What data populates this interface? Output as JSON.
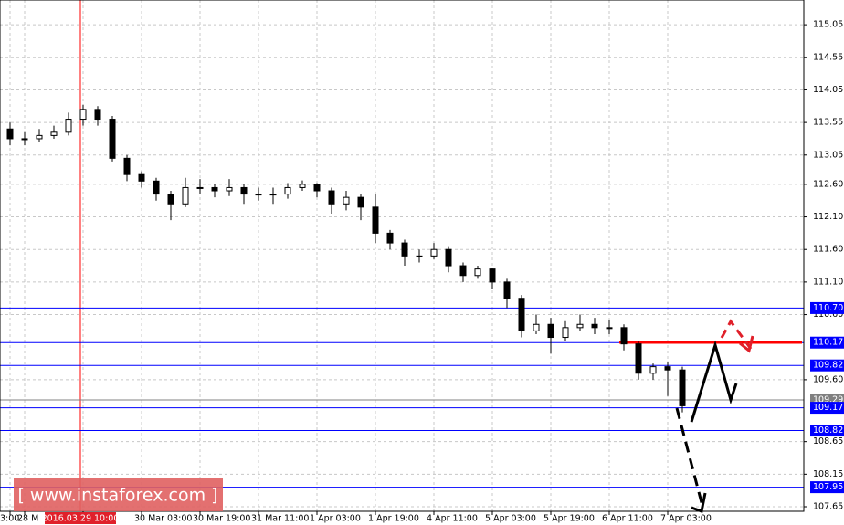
{
  "chart_data": {
    "type": "candlestick",
    "categories": [
      "3:00",
      "28 M",
      null,
      null,
      null,
      "2016.03.29 10:00",
      null,
      null,
      null,
      "30 Mar 03:00",
      null,
      null,
      null,
      "30 Mar 19:00",
      null,
      null,
      null,
      "31 Mar 11:00",
      null,
      null,
      null,
      "1 Apr 03:00",
      null,
      null,
      null,
      "1 Apr 19:00",
      null,
      null,
      null,
      "4 Apr 11:00",
      null,
      null,
      null,
      "5 Apr 03:00",
      null,
      null,
      null,
      "5 Apr 19:00",
      null,
      null,
      null,
      "6 Apr 11:00",
      null,
      null,
      null,
      "7 Apr 03:00",
      null
    ],
    "open": [
      113.45,
      113.3,
      113.3,
      113.35,
      113.4,
      113.6,
      113.75,
      113.6,
      113.0,
      112.75,
      112.65,
      112.45,
      112.3,
      112.55,
      112.55,
      112.5,
      112.55,
      112.45,
      112.45,
      112.45,
      112.55,
      112.6,
      112.5,
      112.3,
      112.4,
      112.25,
      111.85,
      111.7,
      111.5,
      111.5,
      111.6,
      111.35,
      111.2,
      111.3,
      111.1,
      110.85,
      110.35,
      110.45,
      110.25,
      110.4,
      110.45,
      110.4,
      110.4,
      110.15,
      109.7,
      109.8,
      109.75
    ],
    "high": [
      113.55,
      113.4,
      113.45,
      113.5,
      113.7,
      113.82,
      113.8,
      113.65,
      113.05,
      112.8,
      112.7,
      112.5,
      112.7,
      112.68,
      112.6,
      112.68,
      112.6,
      112.55,
      112.55,
      112.62,
      112.66,
      112.62,
      112.55,
      112.5,
      112.45,
      112.45,
      111.9,
      111.75,
      111.6,
      111.7,
      111.65,
      111.4,
      111.35,
      111.32,
      111.15,
      110.9,
      110.6,
      110.55,
      110.5,
      110.6,
      110.55,
      110.52,
      110.45,
      110.2,
      109.85,
      109.88,
      109.8
    ],
    "low": [
      113.2,
      113.2,
      113.25,
      113.3,
      113.35,
      113.5,
      113.5,
      112.95,
      112.65,
      112.55,
      112.35,
      112.05,
      112.25,
      112.45,
      112.4,
      112.42,
      112.3,
      112.35,
      112.3,
      112.38,
      112.5,
      112.4,
      112.15,
      112.2,
      112.05,
      111.7,
      111.6,
      111.35,
      111.4,
      111.45,
      111.25,
      111.1,
      111.15,
      111.0,
      110.7,
      110.25,
      110.3,
      110.0,
      110.2,
      110.35,
      110.3,
      110.3,
      110.05,
      109.6,
      109.6,
      109.35,
      109.1
    ],
    "close": [
      113.3,
      113.3,
      113.35,
      113.4,
      113.6,
      113.75,
      113.6,
      113.0,
      112.75,
      112.65,
      112.45,
      112.3,
      112.55,
      112.55,
      112.5,
      112.55,
      112.45,
      112.45,
      112.45,
      112.55,
      112.6,
      112.5,
      112.3,
      112.4,
      112.25,
      111.85,
      111.7,
      111.5,
      111.5,
      111.6,
      111.35,
      111.2,
      111.3,
      111.1,
      110.85,
      110.35,
      110.45,
      110.25,
      110.4,
      110.45,
      110.4,
      110.4,
      110.15,
      109.7,
      109.8,
      109.75,
      109.2
    ],
    "ylim": [
      107.58,
      115.43
    ],
    "yticks": [
      115.05,
      114.55,
      114.05,
      113.55,
      113.05,
      {
        "value": 112.6,
        "label": "112.60"
      },
      {
        "value": 112.1,
        "label": "112.10"
      },
      {
        "value": 111.6,
        "label": "111.60"
      },
      {
        "value": 111.1,
        "label": "111.10"
      },
      {
        "value": 110.6,
        "label": "110.60"
      },
      {
        "value": 109.6,
        "label": "109.60"
      },
      108.65,
      108.15,
      107.65
    ],
    "levels": [
      {
        "value": 110.7,
        "label": "110.70",
        "color": "#0000ff"
      },
      {
        "value": 110.17,
        "label": "110.17",
        "color": "#0000ff"
      },
      {
        "value": 109.82,
        "label": "109.82",
        "color": "#0000ff"
      },
      {
        "value": 109.29,
        "label": "109.29",
        "color": "#808080"
      },
      {
        "value": 109.17,
        "label": "109.17",
        "color": "#0000ff"
      },
      {
        "value": 108.82,
        "label": "108.82",
        "color": "#0000ff"
      },
      {
        "value": 107.95,
        "label": "107.95",
        "color": "#0000ff"
      }
    ],
    "grid": true,
    "watermark": "[  www.instaforex.com ]"
  }
}
